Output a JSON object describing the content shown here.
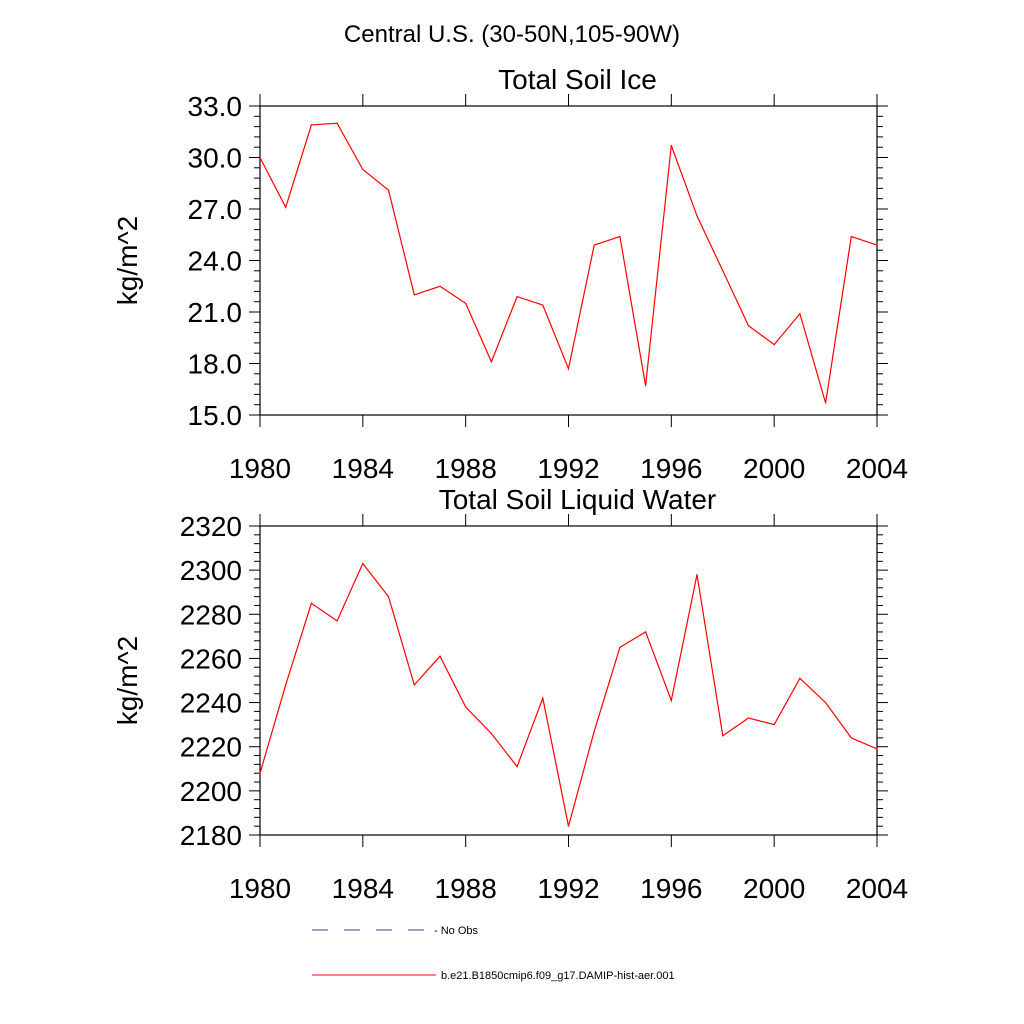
{
  "main_title": "Central U.S. (30-50N,105-90W)",
  "chart_data": [
    {
      "type": "line",
      "title": "Total Soil Ice",
      "ylabel": "kg/m^2",
      "xlabel": "",
      "xlim": [
        1980,
        2004
      ],
      "ylim": [
        15.0,
        33.0
      ],
      "x_ticks": [
        "1980",
        "1984",
        "1988",
        "1992",
        "1996",
        "2000",
        "2004"
      ],
      "y_ticks": [
        "15.0",
        "18.0",
        "21.0",
        "24.0",
        "27.0",
        "30.0",
        "33.0"
      ],
      "grid": false,
      "x": [
        1980,
        1981,
        1982,
        1983,
        1984,
        1985,
        1986,
        1987,
        1988,
        1989,
        1990,
        1991,
        1992,
        1993,
        1994,
        1995,
        1996,
        1997,
        1998,
        1999,
        2000,
        2001,
        2002,
        2003,
        2004
      ],
      "series": [
        {
          "name": "b.e21.B1850cmip6.f09_g17.DAMIP-hist-aer.001",
          "color": "#ff0000",
          "values": [
            30.0,
            27.1,
            31.9,
            32.0,
            29.3,
            28.1,
            22.0,
            22.5,
            21.5,
            18.1,
            21.9,
            21.4,
            17.7,
            24.9,
            25.4,
            16.7,
            30.7,
            26.6,
            23.4,
            20.2,
            19.1,
            20.9,
            15.7,
            25.4,
            24.9
          ]
        }
      ]
    },
    {
      "type": "line",
      "title": "Total Soil Liquid Water",
      "ylabel": "kg/m^2",
      "xlabel": "",
      "xlim": [
        1980,
        2004
      ],
      "ylim": [
        2180,
        2320
      ],
      "x_ticks": [
        "1980",
        "1984",
        "1988",
        "1992",
        "1996",
        "2000",
        "2004"
      ],
      "y_ticks": [
        "2180",
        "2200",
        "2220",
        "2240",
        "2260",
        "2280",
        "2300",
        "2320"
      ],
      "grid": false,
      "x": [
        1980,
        1981,
        1982,
        1983,
        1984,
        1985,
        1986,
        1987,
        1988,
        1989,
        1990,
        1991,
        1992,
        1993,
        1994,
        1995,
        1996,
        1997,
        1998,
        1999,
        2000,
        2001,
        2002,
        2003,
        2004
      ],
      "series": [
        {
          "name": "b.e21.B1850cmip6.f09_g17.DAMIP-hist-aer.001",
          "color": "#ff0000",
          "values": [
            2208,
            2248,
            2285,
            2277,
            2303,
            2288,
            2248,
            2261,
            2238,
            2226,
            2211,
            2242,
            2184,
            2227,
            2265,
            2272,
            2241,
            2298,
            2225,
            2233,
            2230,
            2251,
            2240,
            2224,
            2219
          ]
        }
      ]
    }
  ],
  "legend": {
    "placement": "bottom",
    "items": [
      {
        "label": "No Obs",
        "color": "#3f3f8f",
        "style": "dashed"
      },
      {
        "label": "b.e21.B1850cmip6.f09_g17.DAMIP-hist-aer.001",
        "color": "#ff0000",
        "style": "solid"
      }
    ]
  }
}
